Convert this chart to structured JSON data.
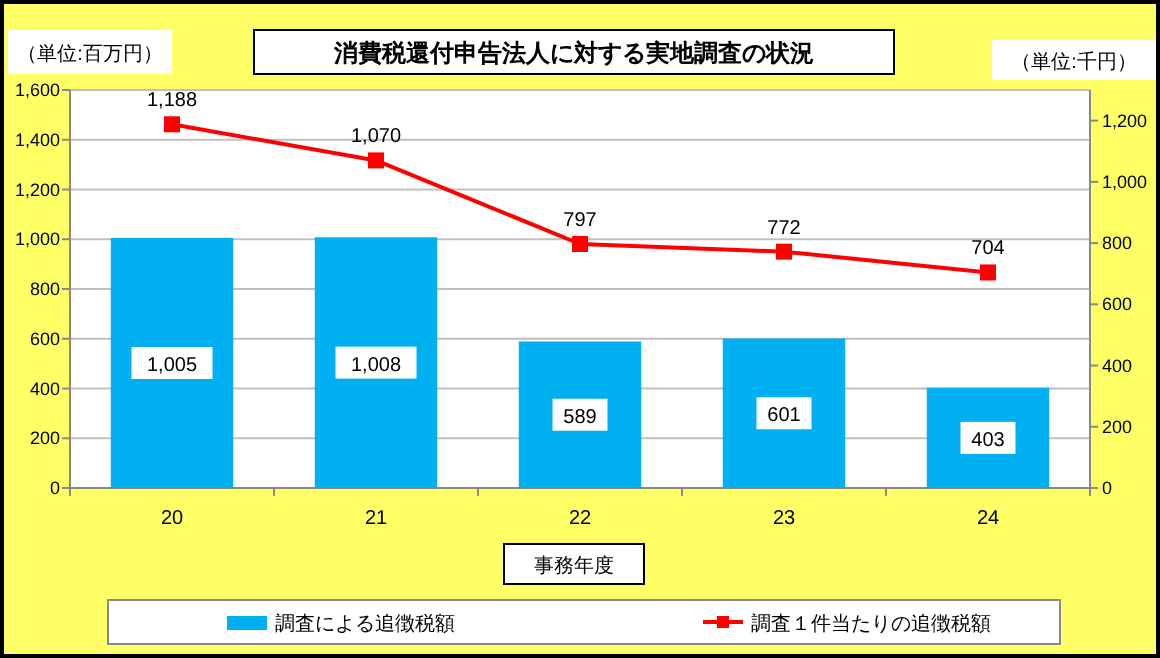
{
  "chart_data": {
    "type": "bar",
    "title": "消費税還付申告法人に対する実地調査の状況",
    "ylabel": "（単位:百万円）",
    "y2label": "（単位:千円）",
    "xlabel": "事務年度",
    "categories": [
      "20",
      "21",
      "22",
      "23",
      "24"
    ],
    "series": [
      {
        "name": "調査による追徴税額",
        "color": "#00b0f0",
        "values": [
          1005,
          1008,
          589,
          601,
          403
        ],
        "value_labels": [
          "1,005",
          "1,008",
          "589",
          "601",
          "403"
        ]
      },
      {
        "name": "調査１件当たりの追徴税額",
        "type": "line",
        "axis": "y2",
        "color": "#ff0000",
        "marker": "square",
        "values": [
          1188,
          1070,
          797,
          772,
          704
        ],
        "value_labels": [
          "1,188",
          "1,070",
          "797",
          "772",
          "704"
        ]
      }
    ],
    "ylim": [
      0,
      1600
    ],
    "yticks": [
      0,
      200,
      400,
      600,
      800,
      {
        "value": 1000,
        "label": "1,000"
      },
      {
        "value": 1200,
        "label": "1,200"
      },
      {
        "value": 1400,
        "label": "1,400"
      },
      {
        "value": 1600,
        "label": "1,600"
      }
    ],
    "y2lim": [
      0,
      1300
    ],
    "y2ticks": [
      0,
      200,
      400,
      600,
      800,
      {
        "value": 1000,
        "label": "1,000"
      },
      {
        "value": 1200,
        "label": "1,200"
      }
    ],
    "grid": "y",
    "legend": "bottom"
  }
}
